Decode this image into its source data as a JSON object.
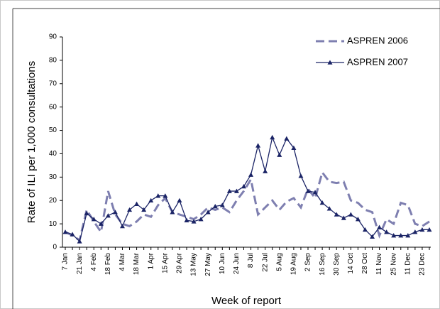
{
  "chart_data": {
    "type": "line",
    "x_label": "Week of report",
    "y_label": "Rate of ILI per 1,000 consultations",
    "categories": [
      "7 Jan",
      null,
      "21 Jan",
      null,
      "4 Feb",
      null,
      "18 Feb",
      null,
      "4 Mar",
      null,
      "18 Mar",
      null,
      "1 Apr",
      null,
      "15 Apr",
      null,
      "29 Apr",
      null,
      "13 May",
      null,
      "27 May",
      null,
      "10 Jun",
      null,
      "24 Jun",
      null,
      "8 Jul",
      null,
      "22 Jul",
      null,
      "5 Aug",
      null,
      "19 Aug",
      null,
      "2 Sep",
      null,
      "16 Sep",
      null,
      "30 Sep",
      null,
      "14 Oct",
      null,
      "28 Oct",
      null,
      "11 Nov",
      null,
      "25 Nov",
      null,
      "11 Dec",
      null,
      "23 Dec",
      null
    ],
    "series": [
      {
        "name": "ASPREN 2006",
        "color": "#7e7fb0",
        "style": "dashed",
        "values": [
          6.5,
          5,
          3,
          16,
          11,
          6.5,
          24,
          14,
          10,
          9,
          11,
          14,
          13,
          18,
          21,
          15,
          14,
          13,
          12,
          14,
          17,
          16,
          17,
          15,
          20,
          24,
          29,
          14,
          17,
          20,
          16,
          19.5,
          21,
          17,
          25,
          21,
          32,
          28,
          27.5,
          28,
          20,
          19,
          16,
          15,
          5,
          12,
          10,
          19,
          18,
          10,
          9,
          11
        ]
      },
      {
        "name": "ASPREN 2007",
        "color": "#1b2466",
        "style": "solid",
        "marker": "triangle",
        "values": [
          6.5,
          5.5,
          2.5,
          14.5,
          12,
          10,
          13.5,
          15,
          9,
          16,
          18.5,
          16,
          20,
          22,
          22,
          15,
          20,
          11.5,
          11,
          12,
          15,
          17.5,
          18,
          24,
          24,
          26,
          31,
          43.5,
          32.5,
          47,
          39.5,
          46.5,
          42.5,
          30.5,
          24,
          23.5,
          19,
          16.5,
          14,
          12.5,
          14,
          12,
          7.5,
          4.5,
          8.5,
          6.5,
          5,
          5,
          5,
          6.5,
          7.5,
          7.5
        ]
      }
    ],
    "ylim": [
      0,
      90
    ],
    "yticks": [
      0,
      10,
      20,
      30,
      40,
      50,
      60,
      70,
      80,
      90
    ],
    "legend": "top-right"
  }
}
